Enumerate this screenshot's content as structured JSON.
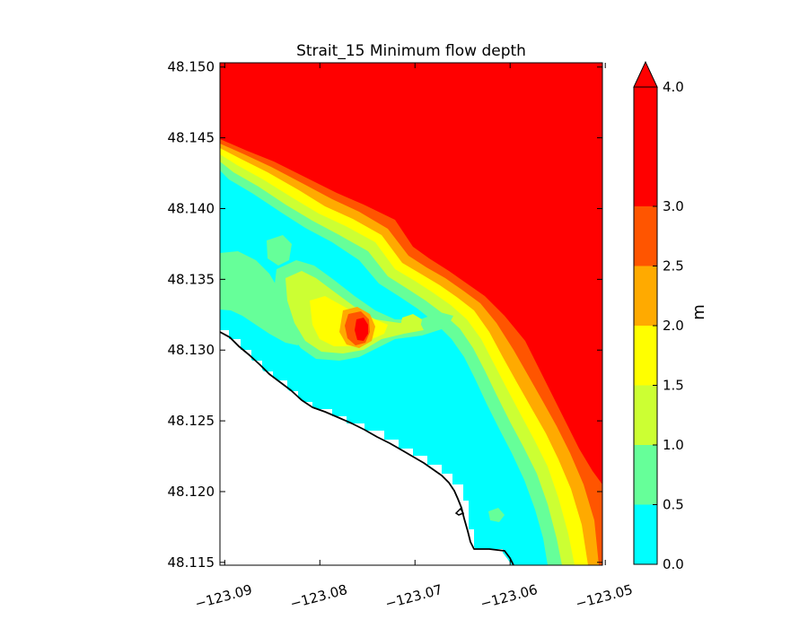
{
  "chart_data": {
    "type": "heatmap",
    "subtype": "filled-contour",
    "title": "Strait_15 Minimum flow depth",
    "xlabel": "",
    "ylabel": "",
    "xlim": [
      -123.0905,
      -123.0503
    ],
    "ylim": [
      48.1148,
      48.1503
    ],
    "x_ticks": [
      -123.09,
      -123.08,
      -123.07,
      -123.06,
      -123.05
    ],
    "x_tick_labels": [
      "−123.09",
      "−123.08",
      "−123.07",
      "−123.06",
      "−123.05"
    ],
    "y_ticks": [
      48.115,
      48.12,
      48.125,
      48.13,
      48.135,
      48.14,
      48.145,
      48.15
    ],
    "y_tick_labels": [
      "48.115",
      "48.120",
      "48.125",
      "48.130",
      "48.135",
      "48.140",
      "48.145",
      "48.150"
    ],
    "grid": false,
    "colorbar": {
      "label": "m",
      "levels": [
        0.0,
        0.5,
        1.0,
        1.5,
        2.0,
        2.5,
        3.0,
        4.0
      ],
      "tick_labels": [
        "0.0",
        "0.5",
        "1.0",
        "1.5",
        "2.0",
        "2.5",
        "3.0",
        "4.0"
      ],
      "colors": [
        "#00ffff",
        "#66ff99",
        "#ccff33",
        "#ffff00",
        "#ffaa00",
        "#ff5500",
        "#ff0000"
      ],
      "extend": "max",
      "extend_color": "#ff0000"
    },
    "depth_bands": {
      "deep": ">= 3.0 m in the north-east (offshore)",
      "shallow": "0.0–0.5 m along the shoreline to the south-west",
      "hotspot": "isolated >= 3.0 m pocket near (-123.0755, 48.1315)"
    },
    "land_color": "#ffffff",
    "coastline_color": "#000000"
  }
}
